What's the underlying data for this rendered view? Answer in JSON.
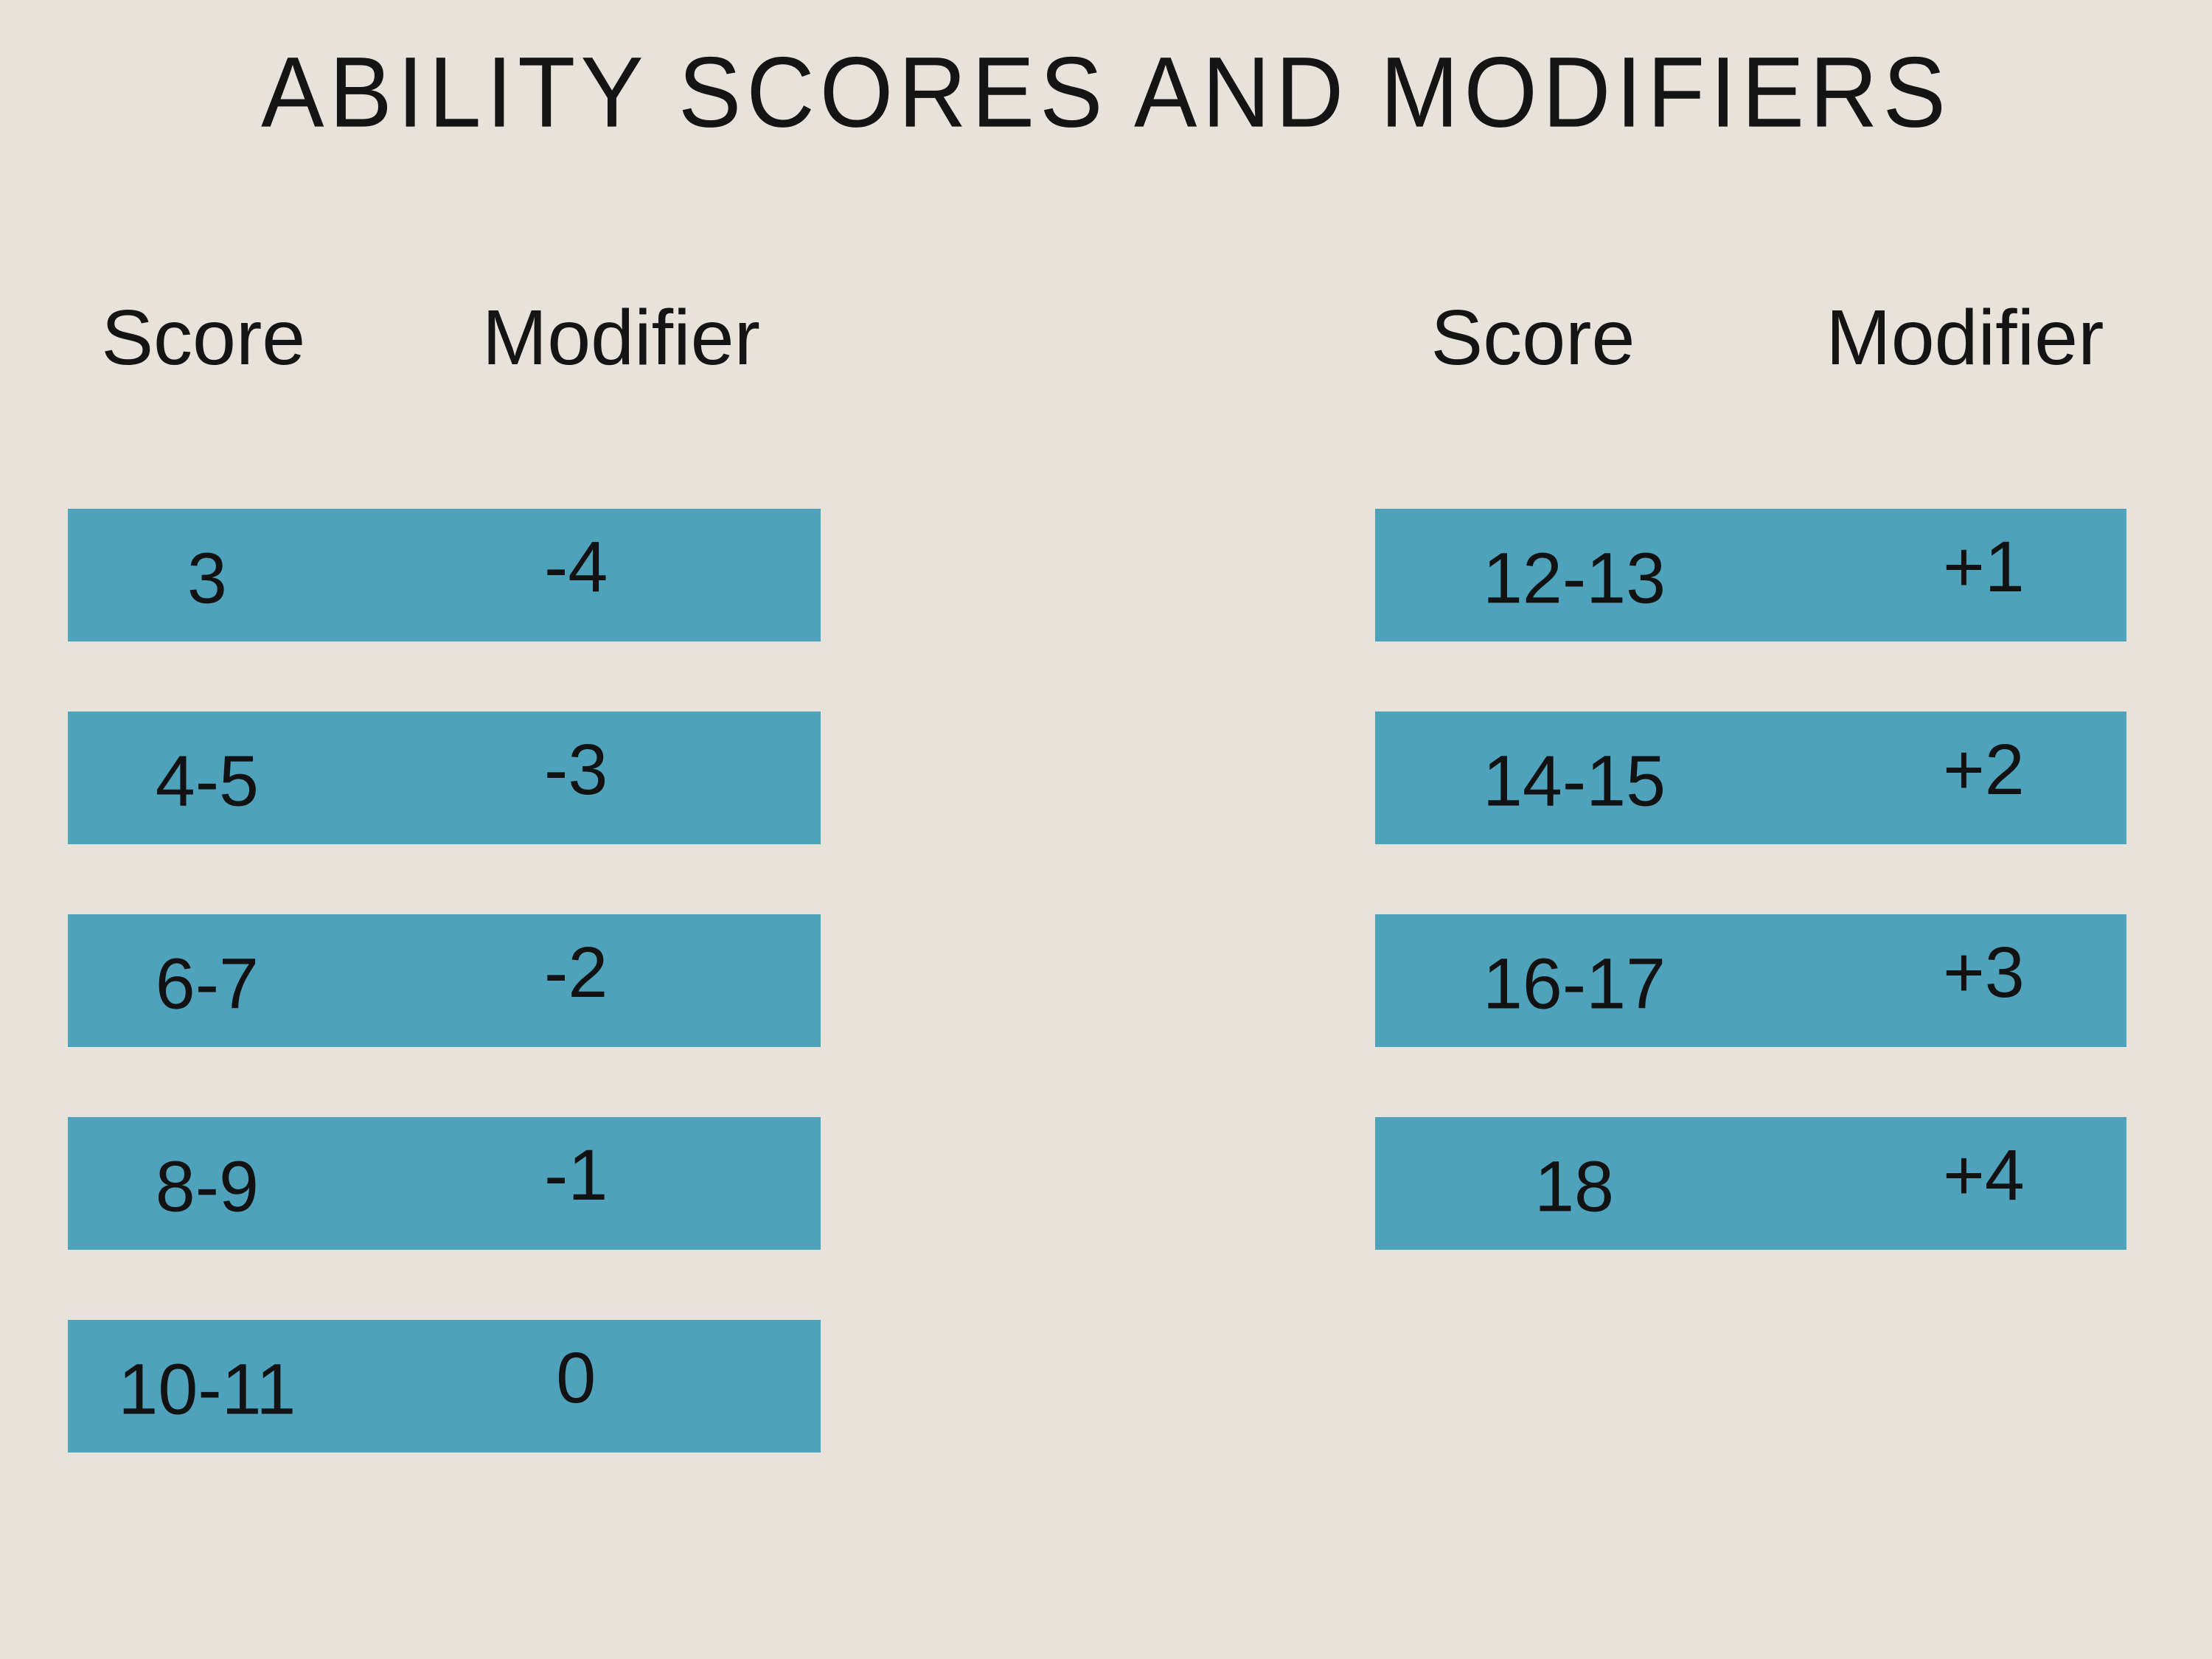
{
  "title": "ABILITY SCORES AND MODIFIERS",
  "colors": {
    "background": "#e7e2da",
    "bar": "#4fa2bc",
    "text": "#141414"
  },
  "columns": [
    {
      "score_header": "Score",
      "modifier_header": "Modifier",
      "rows": [
        {
          "score": "3",
          "modifier": "-4"
        },
        {
          "score": "4-5",
          "modifier": "-3"
        },
        {
          "score": "6-7",
          "modifier": "-2"
        },
        {
          "score": "8-9",
          "modifier": "-1"
        },
        {
          "score": "10-11",
          "modifier": "0"
        }
      ]
    },
    {
      "score_header": "Score",
      "modifier_header": "Modifier",
      "rows": [
        {
          "score": "12-13",
          "modifier": "+1"
        },
        {
          "score": "14-15",
          "modifier": "+2"
        },
        {
          "score": "16-17",
          "modifier": "+3"
        },
        {
          "score": "18",
          "modifier": "+4"
        }
      ]
    }
  ],
  "chart_data": {
    "type": "table",
    "title": "ABILITY SCORES AND MODIFIERS",
    "column_headers": [
      "Score",
      "Modifier"
    ],
    "rows": [
      [
        "3",
        "-4"
      ],
      [
        "4-5",
        "-3"
      ],
      [
        "6-7",
        "-2"
      ],
      [
        "8-9",
        "-1"
      ],
      [
        "10-11",
        "0"
      ],
      [
        "12-13",
        "+1"
      ],
      [
        "14-15",
        "+2"
      ],
      [
        "16-17",
        "+3"
      ],
      [
        "18",
        "+4"
      ]
    ],
    "layout": "two side-by-side two-column tables; left table holds scores 3 through 10-11, right table holds 12-13 through 18; rows drawn as solid teal bars on beige background, no gridlines"
  }
}
